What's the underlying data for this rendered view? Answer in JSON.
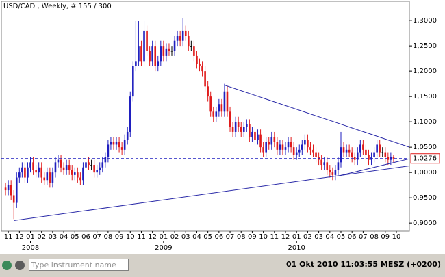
{
  "chart_data": {
    "type": "candlestick",
    "title": "USD/CAD , Weekly, # 155 / 300",
    "open": [
      0.97,
      0.965,
      0.975,
      0.955,
      0.94,
      0.99,
      1.0,
      1.01,
      0.99,
      1.01,
      1.02,
      1.005,
      1.0,
      1.01,
      0.99,
      0.985,
      1.0,
      0.98,
      1.0,
      1.02,
      1.025,
      1.01,
      1.005,
      1.015,
      1.005,
      0.995,
      1.0,
      0.99,
      0.985,
      1.01,
      1.02,
      1.015,
      1.015,
      1.0,
      1.005,
      1.01,
      1.02,
      1.03,
      1.055,
      1.06,
      1.055,
      1.06,
      1.05,
      1.045,
      1.065,
      1.08,
      1.15,
      1.21,
      1.22,
      1.25,
      1.22,
      1.28,
      1.24,
      1.22,
      1.25,
      1.21,
      1.22,
      1.25,
      1.23,
      1.245,
      1.24,
      1.24,
      1.26,
      1.27,
      1.26,
      1.28,
      1.27,
      1.25,
      1.25,
      1.23,
      1.215,
      1.21,
      1.2,
      1.17,
      1.15,
      1.12,
      1.11,
      1.12,
      1.135,
      1.12,
      1.16,
      1.12,
      1.09,
      1.08,
      1.1,
      1.09,
      1.08,
      1.09,
      1.095,
      1.07,
      1.08,
      1.065,
      1.075,
      1.05,
      1.04,
      1.06,
      1.055,
      1.07,
      1.06,
      1.045,
      1.055,
      1.045,
      1.05,
      1.06,
      1.05,
      1.035,
      1.04,
      1.045,
      1.055,
      1.065,
      1.05,
      1.045,
      1.04,
      1.03,
      1.025,
      1.015,
      1.02,
      1.005,
      1.0,
      0.995,
      1.005,
      1.02,
      1.05,
      1.04,
      1.045,
      1.04,
      1.03,
      1.025,
      1.04,
      1.055,
      1.045,
      1.035,
      1.025,
      1.03,
      1.04,
      1.055,
      1.04,
      1.04,
      1.03,
      1.025,
      1.03
    ],
    "high": [
      0.98,
      0.985,
      0.985,
      0.965,
      1.0,
      1.01,
      1.02,
      1.02,
      1.02,
      1.03,
      1.03,
      1.015,
      1.02,
      1.02,
      1.0,
      1.01,
      1.01,
      1.01,
      1.03,
      1.035,
      1.035,
      1.02,
      1.025,
      1.025,
      1.015,
      1.01,
      1.01,
      1.0,
      1.02,
      1.03,
      1.03,
      1.025,
      1.025,
      1.015,
      1.02,
      1.03,
      1.04,
      1.065,
      1.07,
      1.07,
      1.07,
      1.07,
      1.06,
      1.075,
      1.09,
      1.16,
      1.22,
      1.3,
      1.3,
      1.26,
      1.3,
      1.29,
      1.25,
      1.26,
      1.26,
      1.23,
      1.26,
      1.26,
      1.255,
      1.255,
      1.25,
      1.27,
      1.28,
      1.28,
      1.305,
      1.29,
      1.28,
      1.26,
      1.26,
      1.24,
      1.225,
      1.22,
      1.21,
      1.18,
      1.16,
      1.13,
      1.13,
      1.145,
      1.145,
      1.175,
      1.17,
      1.13,
      1.1,
      1.11,
      1.11,
      1.1,
      1.1,
      1.105,
      1.105,
      1.09,
      1.09,
      1.085,
      1.085,
      1.06,
      1.07,
      1.07,
      1.08,
      1.08,
      1.07,
      1.065,
      1.065,
      1.06,
      1.07,
      1.07,
      1.06,
      1.05,
      1.055,
      1.065,
      1.075,
      1.075,
      1.06,
      1.055,
      1.05,
      1.04,
      1.035,
      1.03,
      1.03,
      1.015,
      1.01,
      1.015,
      1.03,
      1.08,
      1.06,
      1.055,
      1.055,
      1.05,
      1.04,
      1.05,
      1.065,
      1.065,
      1.055,
      1.045,
      1.04,
      1.05,
      1.065,
      1.065,
      1.05,
      1.05,
      1.04,
      1.04,
      1.035
    ],
    "low": [
      0.955,
      0.955,
      0.945,
      0.908,
      0.93,
      0.98,
      0.99,
      0.98,
      0.98,
      1.0,
      0.995,
      0.99,
      0.99,
      0.98,
      0.975,
      0.975,
      0.97,
      0.97,
      0.99,
      1.01,
      1.0,
      0.995,
      0.995,
      0.995,
      0.985,
      0.985,
      0.98,
      0.975,
      0.975,
      1.0,
      1.005,
      1.005,
      0.99,
      0.99,
      0.995,
      1.0,
      1.01,
      1.02,
      1.045,
      1.045,
      1.045,
      1.04,
      1.035,
      1.035,
      1.055,
      1.07,
      1.14,
      1.2,
      1.21,
      1.21,
      1.21,
      1.23,
      1.21,
      1.21,
      1.2,
      1.2,
      1.21,
      1.22,
      1.22,
      1.23,
      1.23,
      1.23,
      1.25,
      1.25,
      1.25,
      1.26,
      1.24,
      1.24,
      1.22,
      1.205,
      1.2,
      1.19,
      1.16,
      1.14,
      1.11,
      1.1,
      1.1,
      1.11,
      1.11,
      1.11,
      1.11,
      1.08,
      1.07,
      1.07,
      1.08,
      1.07,
      1.07,
      1.08,
      1.06,
      1.06,
      1.055,
      1.055,
      1.04,
      1.03,
      1.03,
      1.045,
      1.045,
      1.05,
      1.035,
      1.035,
      1.035,
      1.035,
      1.04,
      1.04,
      1.025,
      1.025,
      1.03,
      1.035,
      1.045,
      1.04,
      1.035,
      1.03,
      1.02,
      1.015,
      1.005,
      1.005,
      0.995,
      0.99,
      0.985,
      0.985,
      0.995,
      1.01,
      1.03,
      1.03,
      1.03,
      1.02,
      1.015,
      1.015,
      1.03,
      1.035,
      1.025,
      1.015,
      1.015,
      1.02,
      1.03,
      1.03,
      1.03,
      1.02,
      1.015,
      1.015,
      1.02
    ],
    "close": [
      0.965,
      0.975,
      0.955,
      0.94,
      0.99,
      1.0,
      1.01,
      0.99,
      1.01,
      1.02,
      1.005,
      1.0,
      1.01,
      0.99,
      0.985,
      1.0,
      0.98,
      1.0,
      1.02,
      1.025,
      1.01,
      1.005,
      1.015,
      1.005,
      0.995,
      1.0,
      0.99,
      0.985,
      1.01,
      1.02,
      1.015,
      1.015,
      1.0,
      1.005,
      1.01,
      1.02,
      1.03,
      1.055,
      1.06,
      1.055,
      1.06,
      1.05,
      1.045,
      1.065,
      1.08,
      1.15,
      1.21,
      1.22,
      1.25,
      1.22,
      1.28,
      1.24,
      1.22,
      1.25,
      1.21,
      1.22,
      1.25,
      1.23,
      1.245,
      1.24,
      1.24,
      1.26,
      1.27,
      1.26,
      1.28,
      1.27,
      1.25,
      1.25,
      1.23,
      1.215,
      1.21,
      1.2,
      1.17,
      1.15,
      1.12,
      1.11,
      1.12,
      1.135,
      1.12,
      1.16,
      1.12,
      1.09,
      1.08,
      1.1,
      1.09,
      1.08,
      1.09,
      1.095,
      1.07,
      1.08,
      1.065,
      1.075,
      1.05,
      1.04,
      1.06,
      1.055,
      1.07,
      1.06,
      1.045,
      1.055,
      1.045,
      1.05,
      1.06,
      1.05,
      1.035,
      1.04,
      1.045,
      1.055,
      1.065,
      1.05,
      1.045,
      1.04,
      1.03,
      1.025,
      1.015,
      1.02,
      1.005,
      1.0,
      0.995,
      1.005,
      1.02,
      1.05,
      1.04,
      1.045,
      1.04,
      1.03,
      1.025,
      1.04,
      1.055,
      1.045,
      1.035,
      1.025,
      1.03,
      1.04,
      1.055,
      1.04,
      1.04,
      1.03,
      1.025,
      1.03,
      1.0276
    ],
    "up_color": "#1f1fbf",
    "down_color": "#e01b1b",
    "xlim": [
      -1.5,
      145.7
    ],
    "ylim": [
      0.884,
      1.338
    ],
    "xticks": [
      {
        "value": 1,
        "label": "11"
      },
      {
        "value": 5,
        "label": "12"
      },
      {
        "value": 9,
        "label": "01"
      },
      {
        "value": 13,
        "label": "02"
      },
      {
        "value": 17,
        "label": "03"
      },
      {
        "value": 21,
        "label": "04"
      },
      {
        "value": 25,
        "label": "05"
      },
      {
        "value": 29,
        "label": "06"
      },
      {
        "value": 33,
        "label": "07"
      },
      {
        "value": 37,
        "label": "08"
      },
      {
        "value": 41,
        "label": "09"
      },
      {
        "value": 45,
        "label": "10"
      },
      {
        "value": 49,
        "label": "11"
      },
      {
        "value": 53,
        "label": "12"
      },
      {
        "value": 57,
        "label": "01"
      },
      {
        "value": 61,
        "label": "02"
      },
      {
        "value": 65,
        "label": "03"
      },
      {
        "value": 69,
        "label": "04"
      },
      {
        "value": 73,
        "label": "05"
      },
      {
        "value": 77,
        "label": "06"
      },
      {
        "value": 81,
        "label": "07"
      },
      {
        "value": 85,
        "label": "08"
      },
      {
        "value": 89,
        "label": "09"
      },
      {
        "value": 93,
        "label": "10"
      },
      {
        "value": 97,
        "label": "11"
      },
      {
        "value": 101,
        "label": "12"
      },
      {
        "value": 105,
        "label": "01"
      },
      {
        "value": 109,
        "label": "02"
      },
      {
        "value": 113,
        "label": "03"
      },
      {
        "value": 117,
        "label": "04"
      },
      {
        "value": 121,
        "label": "05"
      },
      {
        "value": 125,
        "label": "06"
      },
      {
        "value": 129,
        "label": "07"
      },
      {
        "value": 133,
        "label": "08"
      },
      {
        "value": 137,
        "label": "09"
      },
      {
        "value": 141,
        "label": "10"
      }
    ],
    "year_labels": [
      {
        "value": 9,
        "label": "2008"
      },
      {
        "value": 57,
        "label": "2009"
      },
      {
        "value": 105,
        "label": "2010"
      }
    ],
    "yticks": [
      {
        "value": 0.9,
        "label": "0,9000"
      },
      {
        "value": 0.95,
        "label": "0,9500"
      },
      {
        "value": 1.0,
        "label": "1,0000"
      },
      {
        "value": 1.05,
        "label": "1,0500"
      },
      {
        "value": 1.1,
        "label": "1,1000"
      },
      {
        "value": 1.15,
        "label": "1,1500"
      },
      {
        "value": 1.2,
        "label": "1,2000"
      },
      {
        "value": 1.25,
        "label": "1,2500"
      },
      {
        "value": 1.3,
        "label": "1,3000"
      }
    ],
    "current_price": {
      "value": 1.0276,
      "label": "1,0276"
    },
    "trendlines": [
      {
        "x": [
          3,
          145.7
        ],
        "y": [
          0.905,
          1.013
        ]
      },
      {
        "x": [
          79,
          145.7
        ],
        "y": [
          1.1725,
          1.05
        ]
      },
      {
        "x": [
          120,
          145.7
        ],
        "y": [
          0.993,
          1.027
        ]
      }
    ]
  },
  "toolbar": {
    "search_placeholder": "Type instrument name",
    "timestamp": "01 Okt 2010 11:03:55  MESZ (+0200)"
  }
}
